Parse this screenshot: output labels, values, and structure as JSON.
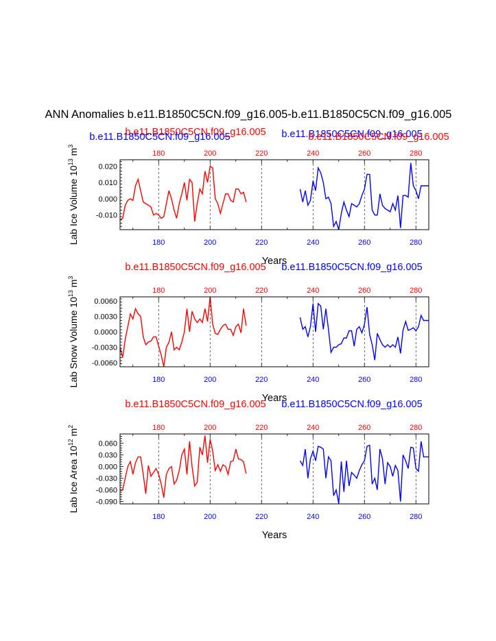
{
  "title": "ANN Anomalies b.e11.B1850C5CN.f09_g16.005-b.e11.B1850C5CN.f09_g16.005",
  "colors": {
    "case_a": "#ff0000",
    "case_b": "#0000ff",
    "axis": "#000000"
  },
  "chart_data": [
    {
      "type": "line",
      "ylabel": "Lab Ice Volume 10",
      "yunit_exp": "13",
      "yunit": "m",
      "yunit_power": "3",
      "xlabel": "Years",
      "xlim": [
        165,
        285
      ],
      "ylim": [
        -0.019,
        0.024
      ],
      "yticks": [
        0.02,
        0.01,
        0.0,
        -0.01
      ],
      "ytick_labels": [
        "0.020",
        "0.010",
        "0.000",
        "-0.010"
      ],
      "xticks_top": [
        "180",
        "200",
        "220",
        "240",
        "260",
        "280"
      ],
      "xticks_bottom": [
        "180",
        "200",
        "220",
        "240",
        "260",
        "280"
      ],
      "series": [
        {
          "name": "b.e11.B1850C5CN.f09_g16.005",
          "color": "#ff0000",
          "x": [
            165,
            166,
            167,
            168,
            169,
            170,
            171,
            172,
            173,
            174,
            175,
            176,
            177,
            178,
            179,
            180,
            181,
            182,
            183,
            184,
            185,
            186,
            187,
            188,
            189,
            190,
            191,
            192,
            193,
            194,
            195,
            196,
            197,
            198,
            199,
            200,
            201,
            202,
            203,
            204,
            205,
            206,
            207,
            208,
            209,
            210,
            211,
            212,
            213,
            214
          ],
          "y": [
            -0.013,
            -0.012,
            -0.004,
            -0.001,
            0.0,
            -0.001,
            0.008,
            0.012,
            0.005,
            -0.002,
            -0.003,
            -0.004,
            -0.005,
            -0.01,
            -0.009,
            -0.01,
            -0.012,
            -0.011,
            -0.003,
            0.005,
            0.0,
            -0.007,
            -0.012,
            -0.003,
            0.003,
            0.01,
            -0.001,
            0.012,
            0.01,
            -0.014,
            -0.003,
            0.006,
            0.003,
            0.017,
            0.01,
            0.02,
            0.019,
            0.0,
            -0.003,
            -0.009,
            -0.003,
            0.003,
            0.003,
            -0.001,
            -0.002,
            0.006,
            0.006,
            0.003,
            0.004,
            -0.002
          ]
        },
        {
          "name": "b.e11.B1850C5CN.f09_g16.005",
          "color": "#0000ff",
          "x": [
            235,
            236,
            237,
            238,
            239,
            240,
            241,
            242,
            243,
            244,
            245,
            246,
            247,
            248,
            249,
            250,
            251,
            252,
            253,
            254,
            255,
            256,
            257,
            258,
            259,
            260,
            261,
            262,
            263,
            264,
            265,
            266,
            267,
            268,
            269,
            270,
            271,
            272,
            273,
            274,
            275,
            276,
            277,
            278,
            279,
            280,
            281,
            282,
            283,
            284,
            285
          ],
          "y": [
            0.006,
            -0.002,
            0.005,
            -0.004,
            -0.001,
            0.011,
            0.005,
            0.019,
            0.016,
            0.01,
            0.0,
            0.001,
            -0.003,
            -0.017,
            -0.014,
            -0.019,
            -0.009,
            -0.002,
            -0.007,
            -0.011,
            -0.003,
            -0.004,
            -0.005,
            -0.003,
            0.002,
            0.006,
            0.015,
            0.015,
            -0.007,
            -0.01,
            -0.01,
            0.003,
            -0.004,
            -0.006,
            -0.007,
            -0.008,
            -0.003,
            -0.007,
            0.002,
            -0.018,
            0.002,
            0.002,
            0.001,
            0.022,
            0.008,
            0.005,
            0.0,
            0.008,
            0.008,
            0.008,
            0.008
          ]
        }
      ]
    },
    {
      "type": "line",
      "ylabel": "Lab Snow Volume 10",
      "yunit_exp": "13",
      "yunit": "m",
      "yunit_power": "3",
      "xlabel": "Years",
      "xlim": [
        165,
        285
      ],
      "ylim": [
        -0.0068,
        0.0068
      ],
      "yticks": [
        0.006,
        0.003,
        0.0,
        -0.003,
        -0.006
      ],
      "ytick_labels": [
        "0.0060",
        "0.0030",
        "0.0000",
        "-0.0030",
        "-0.0060"
      ],
      "xticks_top": [
        "180",
        "200",
        "220",
        "240",
        "260",
        "280"
      ],
      "xticks_bottom": [
        "180",
        "200",
        "220",
        "240",
        "260",
        "280"
      ],
      "series": [
        {
          "name": "b.e11.B1850C5CN.f09_g16.005",
          "color": "#ff0000",
          "x": [
            165,
            166,
            167,
            168,
            169,
            170,
            171,
            172,
            173,
            174,
            175,
            176,
            177,
            178,
            179,
            180,
            181,
            182,
            183,
            184,
            185,
            186,
            187,
            188,
            189,
            190,
            191,
            192,
            193,
            194,
            195,
            196,
            197,
            198,
            199,
            200,
            201,
            202,
            203,
            204,
            205,
            206,
            207,
            208,
            209,
            210,
            211,
            212,
            213,
            214
          ],
          "y": [
            -0.003,
            -0.005,
            -0.0015,
            0.001,
            0.0035,
            0.0025,
            0.0045,
            0.0035,
            0.003,
            -0.001,
            -0.0025,
            -0.002,
            -0.0018,
            -0.001,
            -0.001,
            -0.0028,
            -0.0045,
            -0.0068,
            -0.003,
            -0.002,
            0.0,
            -0.0035,
            -0.003,
            -0.0035,
            -0.002,
            0.0,
            0.0045,
            0.0,
            0.004,
            0.0025,
            0.0018,
            0.0025,
            0.0018,
            0.0045,
            0.002,
            0.0068,
            0.0015,
            -0.0003,
            -0.0005,
            0.0005,
            0.0012,
            0.0015,
            0.0005,
            0.0005,
            -0.0007,
            0.001,
            0.0015,
            -0.0002,
            0.0045,
            0.0012
          ]
        },
        {
          "name": "b.e11.B1850C5CN.f09_g16.005",
          "color": "#0000ff",
          "x": [
            235,
            236,
            237,
            238,
            239,
            240,
            241,
            242,
            243,
            244,
            245,
            246,
            247,
            248,
            249,
            250,
            251,
            252,
            253,
            254,
            255,
            256,
            257,
            258,
            259,
            260,
            261,
            262,
            263,
            264,
            265,
            266,
            267,
            268,
            269,
            270,
            271,
            272,
            273,
            274,
            275,
            276,
            277,
            278,
            279,
            280,
            281,
            282,
            283,
            284,
            285
          ],
          "y": [
            0.0028,
            0.0005,
            0.001,
            -0.001,
            0.001,
            0.0055,
            0.0,
            0.0055,
            0.005,
            0.0005,
            0.0045,
            0.0005,
            -0.004,
            -0.003,
            -0.003,
            -0.0025,
            -0.0023,
            -0.0012,
            -0.0012,
            0.0002,
            0.0002,
            -0.0028,
            0.0005,
            0.001,
            -0.0002,
            0.0015,
            0.0048,
            -0.0005,
            -0.0025,
            -0.0055,
            -0.0003,
            -0.0015,
            -0.0025,
            -0.003,
            -0.0025,
            -0.003,
            -0.0025,
            -0.003,
            -0.001,
            -0.0042,
            0.0003,
            0.002,
            0.0003,
            0.0005,
            0.0008,
            0.0002,
            0.001,
            0.0032,
            0.0022,
            0.0022,
            0.0022
          ]
        }
      ]
    },
    {
      "type": "line",
      "ylabel": "Lab Ice Area 10",
      "yunit_exp": "12",
      "yunit": "m",
      "yunit_power": "2",
      "xlabel": "Years",
      "xlim": [
        165,
        285
      ],
      "ylim": [
        -0.096,
        0.084
      ],
      "yticks": [
        0.06,
        0.03,
        0.0,
        -0.03,
        -0.06,
        -0.09
      ],
      "ytick_labels": [
        "0.060",
        "0.030",
        "0.000",
        "-0.030",
        "-0.060",
        "-0.090"
      ],
      "xticks_top": [
        "180",
        "200",
        "220",
        "240",
        "260",
        "280"
      ],
      "xticks_bottom": [
        "180",
        "200",
        "220",
        "240",
        "260",
        "280"
      ],
      "series": [
        {
          "name": "b.e11.B1850C5CN.f09_g16.005",
          "color": "#ff0000",
          "x": [
            165,
            166,
            167,
            168,
            169,
            170,
            171,
            172,
            173,
            174,
            175,
            176,
            177,
            178,
            179,
            180,
            181,
            182,
            183,
            184,
            185,
            186,
            187,
            188,
            189,
            190,
            191,
            192,
            193,
            194,
            195,
            196,
            197,
            198,
            199,
            200,
            201,
            202,
            203,
            204,
            205,
            206,
            207,
            208,
            209,
            210,
            211,
            212,
            213,
            214
          ],
          "y": [
            -0.062,
            -0.06,
            -0.03,
            0.0,
            0.013,
            -0.02,
            0.01,
            0.025,
            0.025,
            -0.02,
            -0.07,
            0.003,
            -0.025,
            -0.015,
            -0.005,
            -0.02,
            -0.045,
            -0.08,
            -0.02,
            -0.005,
            0.0,
            -0.045,
            -0.035,
            -0.01,
            0.03,
            0.045,
            -0.02,
            0.065,
            0.0,
            -0.05,
            -0.04,
            0.05,
            0.03,
            0.08,
            0.01,
            0.07,
            0.04,
            -0.01,
            0.005,
            -0.012,
            0.005,
            0.0,
            -0.02,
            0.013,
            0.015,
            0.045,
            0.02,
            0.018,
            0.012,
            -0.018
          ]
        },
        {
          "name": "b.e11.B1850C5CN.f09_g16.005",
          "color": "#0000ff",
          "x": [
            235,
            236,
            237,
            238,
            239,
            240,
            241,
            242,
            243,
            244,
            245,
            246,
            247,
            248,
            249,
            250,
            251,
            252,
            253,
            254,
            255,
            256,
            257,
            258,
            259,
            260,
            261,
            262,
            263,
            264,
            265,
            266,
            267,
            268,
            269,
            270,
            271,
            272,
            273,
            274,
            275,
            276,
            277,
            278,
            279,
            280,
            281,
            282,
            283,
            284,
            285
          ],
          "y": [
            0.015,
            0.003,
            0.045,
            -0.03,
            0.02,
            0.04,
            0.015,
            0.052,
            0.05,
            0.045,
            -0.03,
            0.025,
            0.015,
            -0.075,
            -0.06,
            -0.095,
            0.013,
            -0.065,
            0.015,
            -0.05,
            -0.015,
            -0.022,
            -0.03,
            -0.01,
            0.005,
            0.015,
            0.052,
            0.055,
            -0.045,
            -0.03,
            -0.06,
            0.045,
            0.02,
            -0.045,
            0.01,
            0.0,
            -0.025,
            0.003,
            -0.01,
            -0.09,
            0.03,
            0.015,
            -0.005,
            0.05,
            0.048,
            -0.005,
            -0.012,
            0.065,
            0.025,
            0.025,
            0.025
          ]
        }
      ]
    }
  ]
}
